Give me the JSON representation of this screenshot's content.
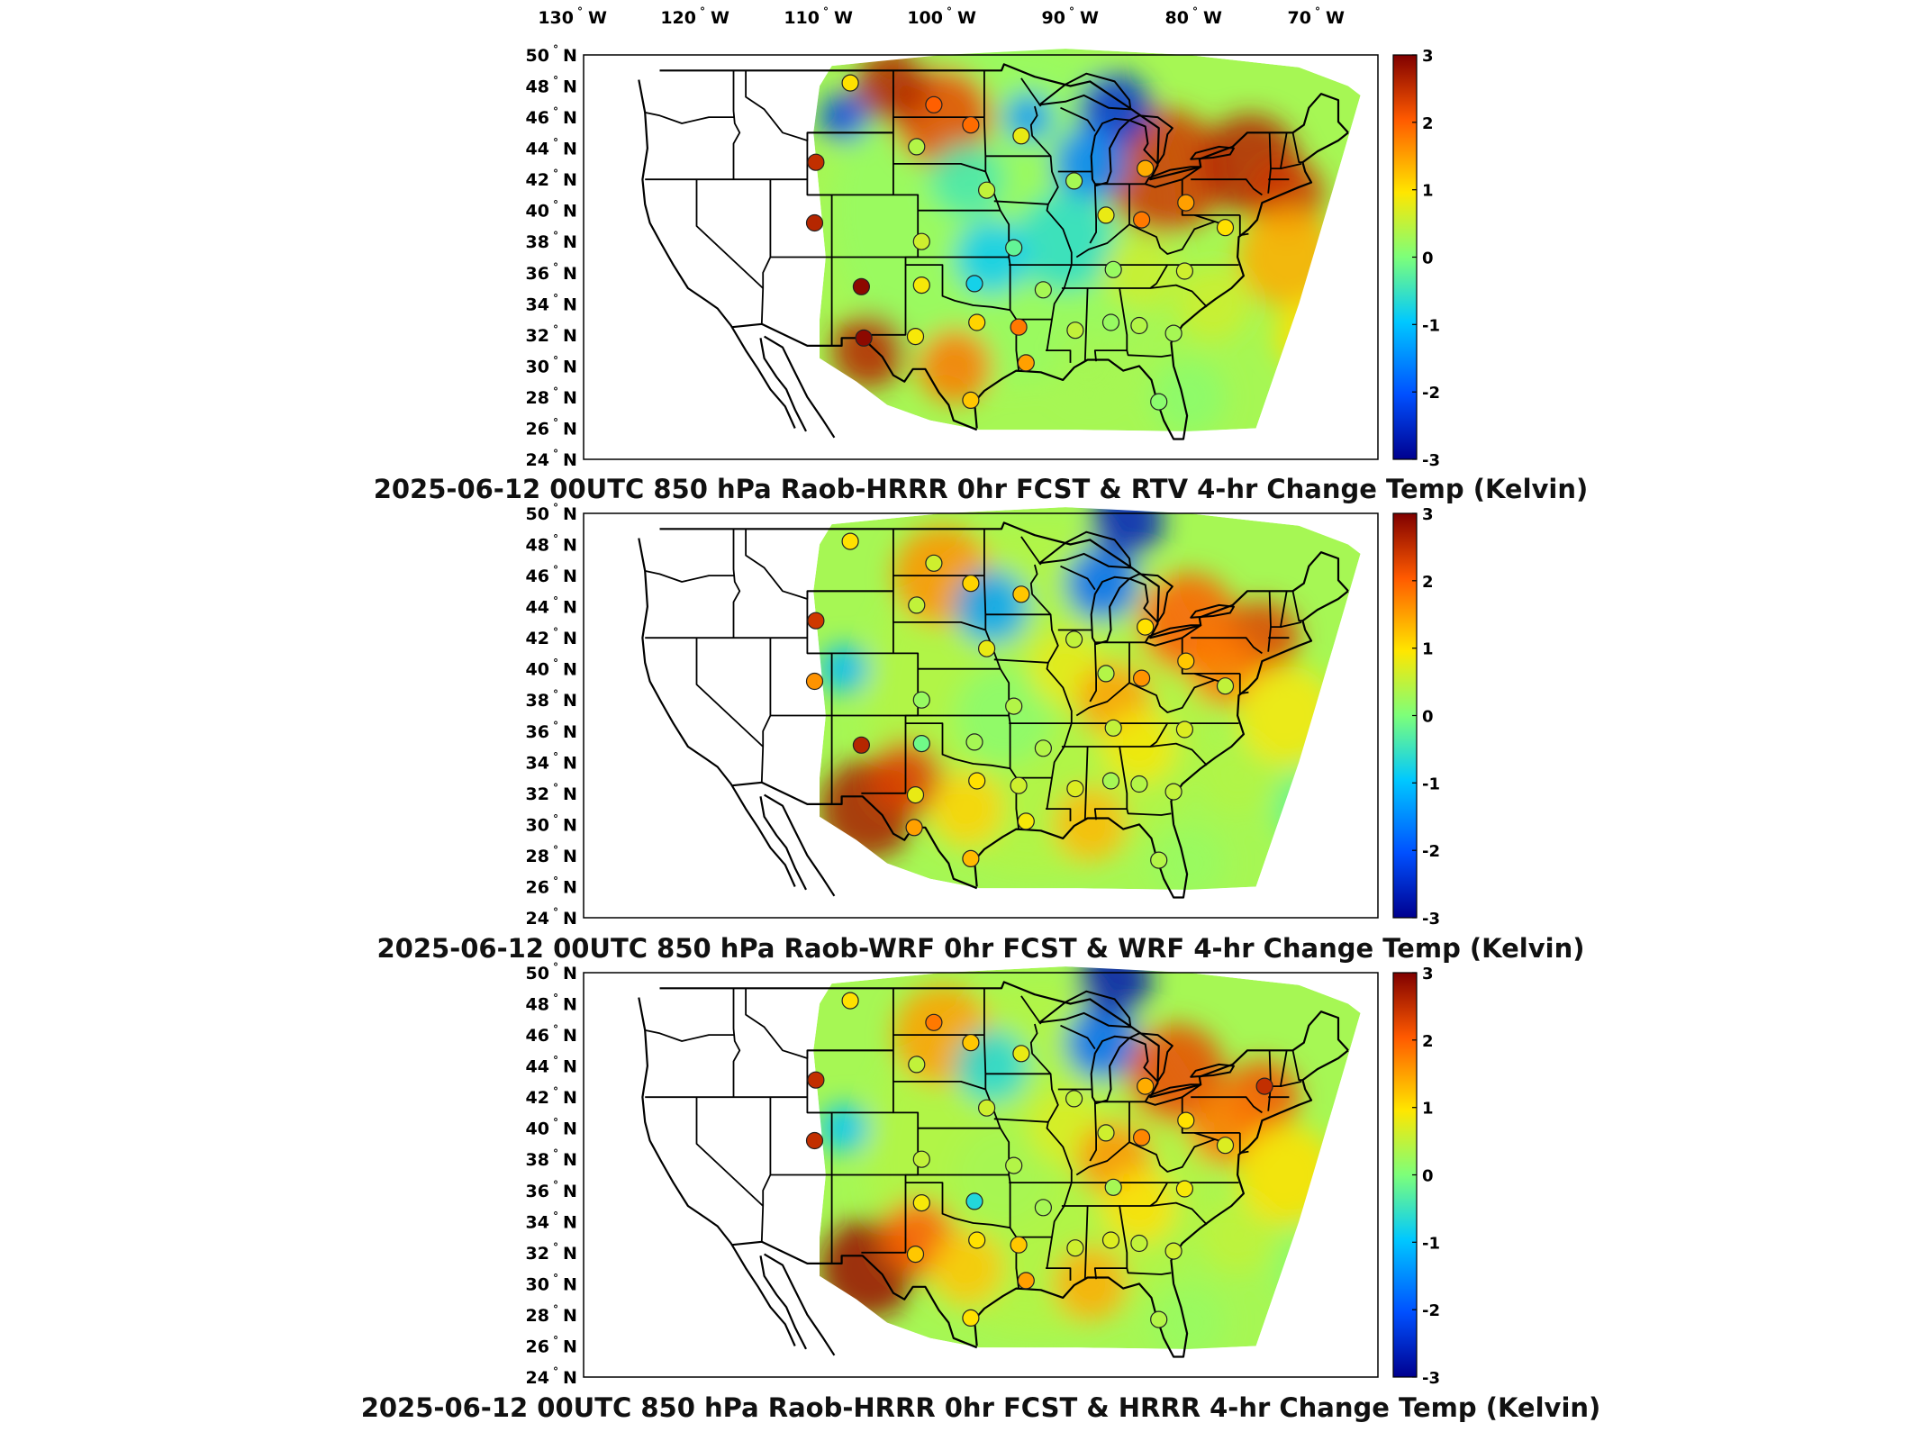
{
  "lon_labels": [
    {
      "value": 130,
      "label": "130",
      "hemisphere": "W"
    },
    {
      "value": 120,
      "label": "120",
      "hemisphere": "W"
    },
    {
      "value": 110,
      "label": "110",
      "hemisphere": "W"
    },
    {
      "value": 100,
      "label": "100",
      "hemisphere": "W"
    },
    {
      "value": 90,
      "label": "90",
      "hemisphere": "W"
    },
    {
      "value": 80,
      "label": "80",
      "hemisphere": "W"
    },
    {
      "value": 70,
      "label": "70",
      "hemisphere": "W"
    }
  ],
  "lat_labels": [
    {
      "value": 50,
      "label": "50",
      "hemisphere": "N"
    },
    {
      "value": 48,
      "label": "48",
      "hemisphere": "N"
    },
    {
      "value": 46,
      "label": "46",
      "hemisphere": "N"
    },
    {
      "value": 44,
      "label": "44",
      "hemisphere": "N"
    },
    {
      "value": 42,
      "label": "42",
      "hemisphere": "N"
    },
    {
      "value": 40,
      "label": "40",
      "hemisphere": "N"
    },
    {
      "value": 38,
      "label": "38",
      "hemisphere": "N"
    },
    {
      "value": 36,
      "label": "36",
      "hemisphere": "N"
    },
    {
      "value": 34,
      "label": "34",
      "hemisphere": "N"
    },
    {
      "value": 32,
      "label": "32",
      "hemisphere": "N"
    },
    {
      "value": 30,
      "label": "30",
      "hemisphere": "N"
    },
    {
      "value": 28,
      "label": "28",
      "hemisphere": "N"
    },
    {
      "value": 26,
      "label": "26",
      "hemisphere": "N"
    },
    {
      "value": 24,
      "label": "24",
      "hemisphere": "N"
    }
  ],
  "colorbar": {
    "ticks": [
      "3",
      "2",
      "1",
      "0",
      "-1",
      "-2",
      "-3"
    ],
    "min": -3,
    "max": 3,
    "colors": [
      "#00008f",
      "#0050ff",
      "#00c8ff",
      "#7dff7a",
      "#ffe600",
      "#ff5a00",
      "#800000"
    ]
  },
  "panels": [
    {
      "title": "2025-06-12 00UTC 850 hPa Raob-HRRR 0hr FCST & RTV 4-hr Change Temp (Kelvin)",
      "stations": [
        {
          "lon": -107.5,
          "lat": 48.2,
          "value": 1.0
        },
        {
          "lon": -100.7,
          "lat": 46.8,
          "value": 2.0
        },
        {
          "lon": -97.7,
          "lat": 45.5,
          "value": 1.9
        },
        {
          "lon": -93.6,
          "lat": 44.8,
          "value": 0.8
        },
        {
          "lon": -102.1,
          "lat": 44.1,
          "value": 0.4
        },
        {
          "lon": -110.3,
          "lat": 43.1,
          "value": 2.5
        },
        {
          "lon": -89.3,
          "lat": 41.9,
          "value": 0.3
        },
        {
          "lon": -83.5,
          "lat": 42.7,
          "value": 1.4
        },
        {
          "lon": -96.4,
          "lat": 41.3,
          "value": 0.5
        },
        {
          "lon": -86.7,
          "lat": 39.7,
          "value": 0.8
        },
        {
          "lon": -80.2,
          "lat": 40.5,
          "value": 1.5
        },
        {
          "lon": -83.8,
          "lat": 39.4,
          "value": 1.8
        },
        {
          "lon": -110.4,
          "lat": 39.2,
          "value": 2.6
        },
        {
          "lon": -101.7,
          "lat": 38.0,
          "value": 0.6
        },
        {
          "lon": -94.2,
          "lat": 37.6,
          "value": -0.2
        },
        {
          "lon": -97.4,
          "lat": 35.3,
          "value": -0.8
        },
        {
          "lon": -101.7,
          "lat": 35.2,
          "value": 0.9
        },
        {
          "lon": -91.8,
          "lat": 34.9,
          "value": 0.3
        },
        {
          "lon": -86.1,
          "lat": 36.2,
          "value": 0.2
        },
        {
          "lon": -80.3,
          "lat": 36.1,
          "value": 0.6
        },
        {
          "lon": -106.6,
          "lat": 35.1,
          "value": 2.9
        },
        {
          "lon": -97.2,
          "lat": 32.8,
          "value": 1.1
        },
        {
          "lon": -93.8,
          "lat": 32.5,
          "value": 1.8
        },
        {
          "lon": -102.2,
          "lat": 31.9,
          "value": 0.9
        },
        {
          "lon": -106.4,
          "lat": 31.8,
          "value": 2.9
        },
        {
          "lon": -89.2,
          "lat": 32.3,
          "value": 0.5
        },
        {
          "lon": -86.3,
          "lat": 32.8,
          "value": 0.2
        },
        {
          "lon": -84.0,
          "lat": 32.6,
          "value": 0.4
        },
        {
          "lon": -81.2,
          "lat": 32.1,
          "value": 0.3
        },
        {
          "lon": -93.2,
          "lat": 30.2,
          "value": 1.5
        },
        {
          "lon": -97.7,
          "lat": 27.8,
          "value": 1.2
        },
        {
          "lon": -82.4,
          "lat": 27.7,
          "value": 0.1
        },
        {
          "lon": -77.0,
          "lat": 38.9,
          "value": 1.0
        }
      ]
    },
    {
      "title": "2025-06-12 00UTC 850 hPa Raob-WRF 0hr FCST & WRF 4-hr Change Temp (Kelvin)",
      "stations": [
        {
          "lon": -107.5,
          "lat": 48.2,
          "value": 1.0
        },
        {
          "lon": -100.7,
          "lat": 46.8,
          "value": 0.6
        },
        {
          "lon": -97.7,
          "lat": 45.5,
          "value": 1.1
        },
        {
          "lon": -93.6,
          "lat": 44.8,
          "value": 1.2
        },
        {
          "lon": -102.1,
          "lat": 44.1,
          "value": 0.5
        },
        {
          "lon": -110.3,
          "lat": 43.1,
          "value": 2.4
        },
        {
          "lon": -89.3,
          "lat": 41.9,
          "value": 0.5
        },
        {
          "lon": -83.5,
          "lat": 42.7,
          "value": 1.0
        },
        {
          "lon": -96.4,
          "lat": 41.3,
          "value": 0.8
        },
        {
          "lon": -86.7,
          "lat": 39.7,
          "value": 0.4
        },
        {
          "lon": -80.2,
          "lat": 40.5,
          "value": 1.2
        },
        {
          "lon": -83.8,
          "lat": 39.4,
          "value": 1.6
        },
        {
          "lon": -110.4,
          "lat": 39.2,
          "value": 1.6
        },
        {
          "lon": -101.7,
          "lat": 38.0,
          "value": 0.2
        },
        {
          "lon": -94.2,
          "lat": 37.6,
          "value": 0.4
        },
        {
          "lon": -97.4,
          "lat": 35.3,
          "value": 0.3
        },
        {
          "lon": -101.7,
          "lat": 35.2,
          "value": -0.1
        },
        {
          "lon": -91.8,
          "lat": 34.9,
          "value": 0.4
        },
        {
          "lon": -86.1,
          "lat": 36.2,
          "value": 0.5
        },
        {
          "lon": -80.3,
          "lat": 36.1,
          "value": 0.7
        },
        {
          "lon": -106.6,
          "lat": 35.1,
          "value": 2.6
        },
        {
          "lon": -97.2,
          "lat": 32.8,
          "value": 1.0
        },
        {
          "lon": -93.8,
          "lat": 32.5,
          "value": 0.6
        },
        {
          "lon": -102.2,
          "lat": 31.9,
          "value": 0.8
        },
        {
          "lon": -89.2,
          "lat": 32.3,
          "value": 0.7
        },
        {
          "lon": -86.3,
          "lat": 32.8,
          "value": 0.3
        },
        {
          "lon": -84.0,
          "lat": 32.6,
          "value": 0.4
        },
        {
          "lon": -81.2,
          "lat": 32.1,
          "value": 0.5
        },
        {
          "lon": -93.2,
          "lat": 30.2,
          "value": 0.9
        },
        {
          "lon": -97.7,
          "lat": 27.8,
          "value": 1.3
        },
        {
          "lon": -82.4,
          "lat": 27.7,
          "value": 0.4
        },
        {
          "lon": -77.0,
          "lat": 38.9,
          "value": 0.5
        },
        {
          "lon": -102.3,
          "lat": 29.8,
          "value": 1.5
        }
      ]
    },
    {
      "title": "2025-06-12 00UTC 850 hPa Raob-HRRR 0hr FCST & HRRR 4-hr Change Temp (Kelvin)",
      "stations": [
        {
          "lon": -107.5,
          "lat": 48.2,
          "value": 1.0
        },
        {
          "lon": -100.7,
          "lat": 46.8,
          "value": 1.8
        },
        {
          "lon": -97.7,
          "lat": 45.5,
          "value": 1.2
        },
        {
          "lon": -93.6,
          "lat": 44.8,
          "value": 0.8
        },
        {
          "lon": -102.1,
          "lat": 44.1,
          "value": 0.5
        },
        {
          "lon": -110.3,
          "lat": 43.1,
          "value": 2.5
        },
        {
          "lon": -89.3,
          "lat": 41.9,
          "value": 0.5
        },
        {
          "lon": -83.5,
          "lat": 42.7,
          "value": 1.4
        },
        {
          "lon": -96.4,
          "lat": 41.3,
          "value": 0.6
        },
        {
          "lon": -86.7,
          "lat": 39.7,
          "value": 0.6
        },
        {
          "lon": -80.2,
          "lat": 40.5,
          "value": 1.0
        },
        {
          "lon": -83.8,
          "lat": 39.4,
          "value": 1.7
        },
        {
          "lon": -110.4,
          "lat": 39.2,
          "value": 2.5
        },
        {
          "lon": -101.7,
          "lat": 38.0,
          "value": 0.5
        },
        {
          "lon": -94.2,
          "lat": 37.6,
          "value": 0.4
        },
        {
          "lon": -97.4,
          "lat": 35.3,
          "value": -0.7
        },
        {
          "lon": -101.7,
          "lat": 35.2,
          "value": 0.9
        },
        {
          "lon": -91.8,
          "lat": 34.9,
          "value": 0.3
        },
        {
          "lon": -86.1,
          "lat": 36.2,
          "value": 0.3
        },
        {
          "lon": -80.3,
          "lat": 36.1,
          "value": 0.9
        },
        {
          "lon": -97.2,
          "lat": 32.8,
          "value": 1.0
        },
        {
          "lon": -93.8,
          "lat": 32.5,
          "value": 1.2
        },
        {
          "lon": -102.2,
          "lat": 31.9,
          "value": 1.2
        },
        {
          "lon": -89.2,
          "lat": 32.3,
          "value": 0.6
        },
        {
          "lon": -86.3,
          "lat": 32.8,
          "value": 0.7
        },
        {
          "lon": -84.0,
          "lat": 32.6,
          "value": 0.5
        },
        {
          "lon": -81.2,
          "lat": 32.1,
          "value": 0.6
        },
        {
          "lon": -93.2,
          "lat": 30.2,
          "value": 1.5
        },
        {
          "lon": -97.7,
          "lat": 27.8,
          "value": 1.0
        },
        {
          "lon": -82.4,
          "lat": 27.7,
          "value": 0.4
        },
        {
          "lon": -73.8,
          "lat": 42.7,
          "value": 2.5
        },
        {
          "lon": -77.0,
          "lat": 38.9,
          "value": 0.7
        }
      ]
    }
  ]
}
